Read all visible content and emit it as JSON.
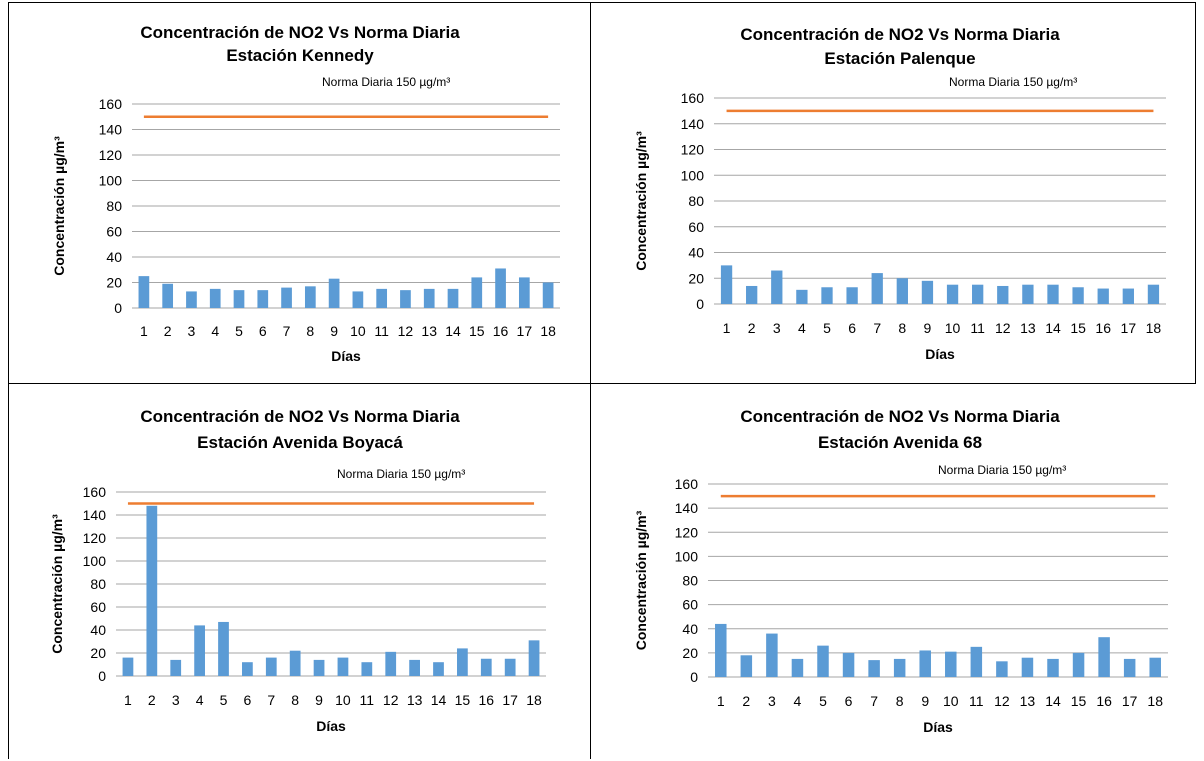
{
  "colors": {
    "bar": "#5b9bd5",
    "norm_line": "#ed7d31",
    "grid": "#a6a6a6",
    "text": "#000000"
  },
  "chart_data": [
    {
      "type": "bar",
      "title": "Concentración de NO2 Vs Norma Diaria",
      "subtitle": "Estación Kennedy",
      "annotation": "Norma Diaria 150   µg/m³",
      "xlabel": "Días",
      "ylabel": "Concentración µg/m³",
      "ylim": [
        0,
        160
      ],
      "yticks": [
        0,
        20,
        40,
        60,
        80,
        100,
        120,
        140,
        160
      ],
      "grid": true,
      "categories": [
        "1",
        "2",
        "3",
        "4",
        "5",
        "6",
        "7",
        "8",
        "9",
        "10",
        "11",
        "12",
        "13",
        "14",
        "15",
        "16",
        "17",
        "18"
      ],
      "values": [
        25,
        19,
        13,
        15,
        14,
        14,
        16,
        17,
        23,
        13,
        15,
        14,
        15,
        15,
        24,
        31,
        24,
        20
      ],
      "norm": 150
    },
    {
      "type": "bar",
      "title": "Concentración de NO2 Vs Norma Diaria",
      "subtitle": "Estación Palenque",
      "annotation": "Norma Diaria 150   µg/m³",
      "xlabel": "Días",
      "ylabel": "Concentración µg/m³",
      "ylim": [
        0,
        160
      ],
      "yticks": [
        0,
        20,
        40,
        60,
        80,
        100,
        120,
        140,
        160
      ],
      "grid": true,
      "categories": [
        "1",
        "2",
        "3",
        "4",
        "5",
        "6",
        "7",
        "8",
        "9",
        "10",
        "11",
        "12",
        "13",
        "14",
        "15",
        "16",
        "17",
        "18"
      ],
      "values": [
        30,
        14,
        26,
        11,
        13,
        13,
        24,
        20,
        18,
        15,
        15,
        14,
        15,
        15,
        13,
        12,
        12,
        15
      ],
      "norm": 150
    },
    {
      "type": "bar",
      "title": "Concentración de NO2 Vs Norma Diaria",
      "subtitle": "Estación Avenida Boyacá",
      "annotation": "Norma Diaria 150   µg/m³",
      "xlabel": "Días",
      "ylabel": "Concentración µg/m³",
      "ylim": [
        0,
        160
      ],
      "yticks": [
        0,
        20,
        40,
        60,
        80,
        100,
        120,
        140,
        160
      ],
      "grid": true,
      "categories": [
        "1",
        "2",
        "3",
        "4",
        "5",
        "6",
        "7",
        "8",
        "9",
        "10",
        "11",
        "12",
        "13",
        "14",
        "15",
        "16",
        "17",
        "18"
      ],
      "values": [
        16,
        148,
        14,
        44,
        47,
        12,
        16,
        22,
        14,
        16,
        12,
        21,
        14,
        12,
        24,
        15,
        15,
        31
      ],
      "norm": 150
    },
    {
      "type": "bar",
      "title": "Concentración de NO2 Vs Norma Diaria",
      "subtitle": "Estación Avenida 68",
      "annotation": "Norma Diaria 150   µg/m³",
      "xlabel": "Días",
      "ylabel": "Concentración µg/m³",
      "ylim": [
        0,
        160
      ],
      "yticks": [
        0,
        20,
        40,
        60,
        80,
        100,
        120,
        140,
        160
      ],
      "grid": true,
      "categories": [
        "1",
        "2",
        "3",
        "4",
        "5",
        "6",
        "7",
        "8",
        "9",
        "10",
        "11",
        "12",
        "13",
        "14",
        "15",
        "16",
        "17",
        "18"
      ],
      "values": [
        44,
        18,
        36,
        15,
        26,
        20,
        14,
        15,
        22,
        21,
        25,
        13,
        16,
        15,
        20,
        33,
        15,
        16
      ],
      "norm": 150
    }
  ]
}
